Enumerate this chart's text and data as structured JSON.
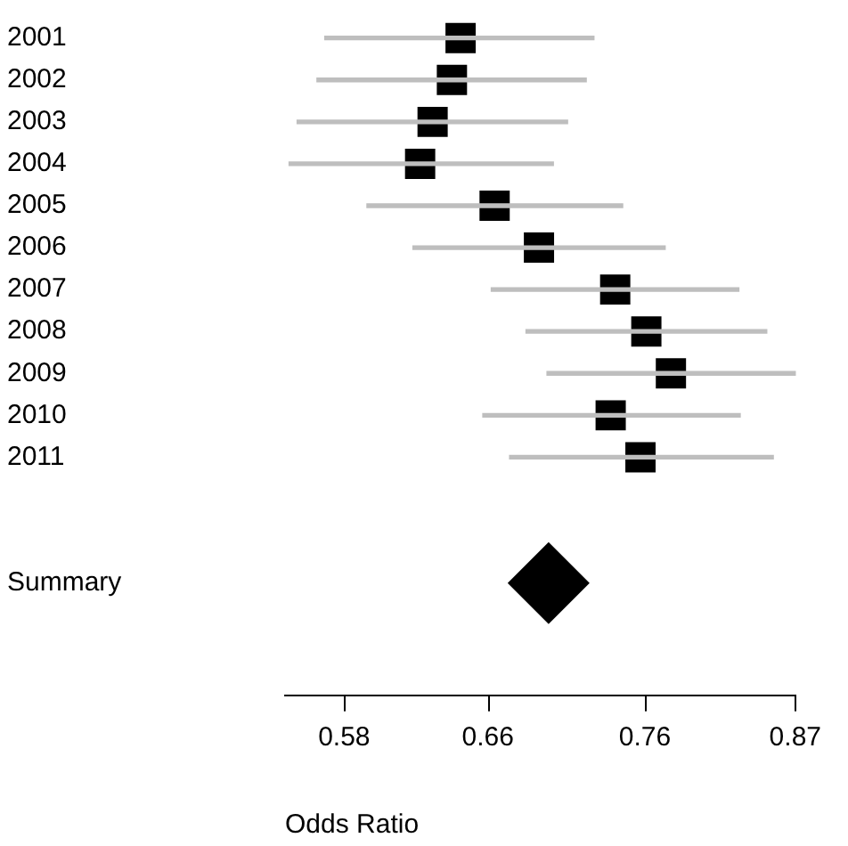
{
  "chart_data": {
    "type": "bar",
    "orientation": "horizontal",
    "categories": [
      "2001",
      "2002",
      "2003",
      "2004",
      "2005",
      "2006",
      "2007",
      "2008",
      "2009",
      "2010",
      "2011",
      null,
      null,
      "Summary"
    ],
    "xlabel": "Odds Ratio",
    "log": "x",
    "xlim": [
      0.55,
      0.87
    ],
    "xticks": [
      0.58,
      0.66,
      0.76,
      0.87
    ],
    "grid": false,
    "legend": false,
    "series": [
      {
        "color": "#bebebe",
        "base": [
          0.57,
          0.566,
          0.556,
          0.552,
          0.592,
          0.617,
          0.662,
          0.683,
          0.696,
          0.657,
          0.673,
          null,
          null,
          null
        ],
        "values": [
          0.156,
          0.155,
          0.153,
          0.148,
          0.153,
          0.157,
          0.165,
          0.165,
          0.174,
          0.171,
          0.18,
          null,
          null,
          null
        ]
      },
      {
        "type": "scatter",
        "color": "#000000",
        "marker": "square",
        "values": [
          0.644,
          0.639,
          0.628,
          0.621,
          0.664,
          0.691,
          0.74,
          0.761,
          0.778,
          0.737,
          0.757,
          null,
          null,
          null
        ]
      },
      {
        "type": "scatter",
        "color": "#000000",
        "marker": "diamond",
        "values": [
          null,
          null,
          null,
          null,
          null,
          null,
          null,
          null,
          null,
          null,
          null,
          null,
          null,
          0.697
        ]
      }
    ]
  }
}
